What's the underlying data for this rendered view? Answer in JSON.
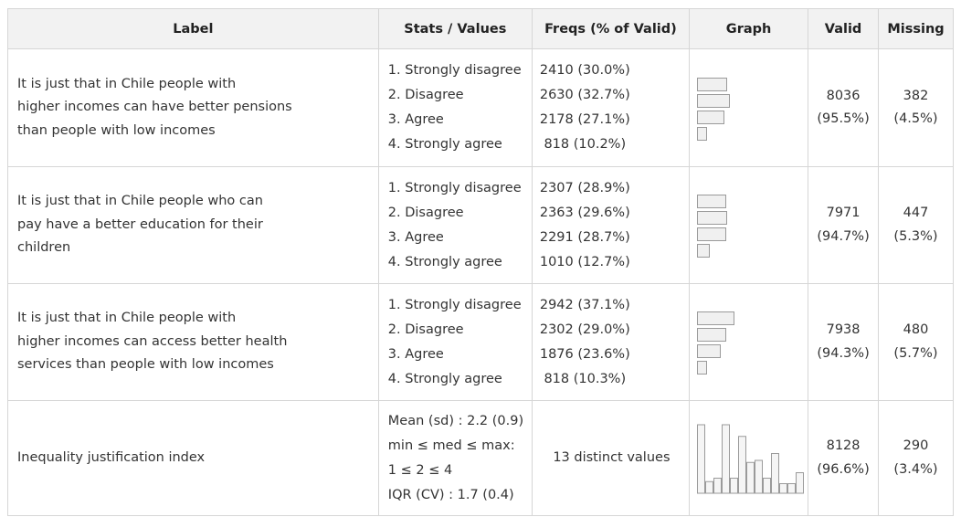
{
  "header": {
    "label": "Label",
    "stats": "Stats / Values",
    "freqs": "Freqs (% of Valid)",
    "graph": "Graph",
    "valid": "Valid",
    "missing": "Missing"
  },
  "rows": [
    {
      "label": [
        "It is just that in Chile people with",
        "higher incomes can have better pensions",
        "than people with low incomes"
      ],
      "stats": [
        "1. Strongly disagree",
        "2. Disagree",
        "3. Agree",
        "4. Strongly agree"
      ],
      "freqs": [
        "2410 (30.0%)",
        "2630 (32.7%)",
        "2178 (27.1%)",
        " 818 (10.2%)"
      ],
      "pct": [
        30.0,
        32.7,
        27.1,
        10.2
      ],
      "valid": [
        "8036",
        "(95.5%)"
      ],
      "missing": [
        "382",
        "(4.5%)"
      ]
    },
    {
      "label": [
        "It is just that in Chile people who can",
        "pay have a better education for their",
        "children"
      ],
      "stats": [
        "1. Strongly disagree",
        "2. Disagree",
        "3. Agree",
        "4. Strongly agree"
      ],
      "freqs": [
        "2307 (28.9%)",
        "2363 (29.6%)",
        "2291 (28.7%)",
        "1010 (12.7%)"
      ],
      "pct": [
        28.9,
        29.6,
        28.7,
        12.7
      ],
      "valid": [
        "7971",
        "(94.7%)"
      ],
      "missing": [
        "447",
        "(5.3%)"
      ]
    },
    {
      "label": [
        "It is just that in Chile people with",
        "higher incomes can access better health",
        "services than people with low incomes"
      ],
      "stats": [
        "1. Strongly disagree",
        "2. Disagree",
        "3. Agree",
        "4. Strongly agree"
      ],
      "freqs": [
        "2942 (37.1%)",
        "2302 (29.0%)",
        "1876 (23.6%)",
        " 818 (10.3%)"
      ],
      "pct": [
        37.1,
        29.0,
        23.6,
        10.3
      ],
      "valid": [
        "7938",
        "(94.3%)"
      ],
      "missing": [
        "480",
        "(5.7%)"
      ]
    },
    {
      "label": [
        "Inequality justification index"
      ],
      "stats": [
        "Mean (sd) : 2.2 (0.9)",
        "min ≤ med ≤ max:",
        "1 ≤ 2 ≤ 4",
        "IQR (CV) : 1.7 (0.4)"
      ],
      "freqs_text": "13 distinct values",
      "histogram": [
        100,
        17,
        22,
        100,
        22,
        83,
        45,
        48,
        22,
        58,
        14,
        14,
        30
      ],
      "valid": [
        "8128",
        "(96.6%)"
      ],
      "missing": [
        "290",
        "(3.4%)"
      ]
    }
  ]
}
